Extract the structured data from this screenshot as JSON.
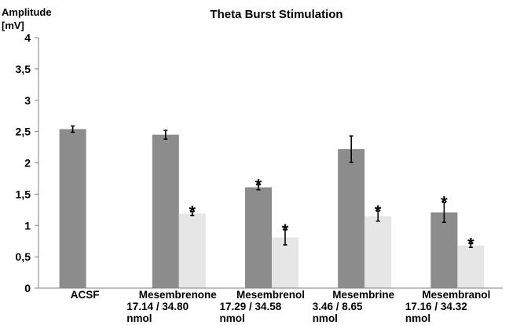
{
  "chart_data": {
    "type": "bar",
    "title": "Theta Burst Stimulation",
    "ylabel_line1": "Amplitude",
    "ylabel_line2": "[mV]",
    "ylim": [
      0,
      4
    ],
    "ytick_values": [
      0,
      0.5,
      1,
      1.5,
      2,
      2.5,
      3,
      3.5,
      4
    ],
    "ytick_labels": [
      "0",
      "0,5",
      "1",
      "1,5",
      "2",
      "2,5",
      "3",
      "3,5",
      "4"
    ],
    "grid": false,
    "legend": "none",
    "categories": [
      [
        "ACSF"
      ],
      [
        "Mesembrenone",
        "17.14 / 34.80",
        "nmol"
      ],
      [
        "Mesembrenol",
        "17.29 / 34.58",
        "nmol"
      ],
      [
        "Mesembrine",
        "3.46 / 8.65",
        "nmol"
      ],
      [
        "Mesembranol",
        "17.16 / 34.32",
        "nmol"
      ]
    ],
    "series": [
      {
        "color": "#8c8c8c",
        "values": [
          2.54,
          2.45,
          1.61,
          2.22,
          1.21
        ],
        "errors": [
          0.05,
          0.07,
          0.04,
          0.21,
          0.16
        ],
        "significance": [
          false,
          false,
          true,
          false,
          true
        ]
      },
      {
        "color": "#e6e6e6",
        "values": [
          null,
          1.19,
          0.81,
          1.15,
          0.68
        ],
        "errors": [
          null,
          0.03,
          0.12,
          0.08,
          0.03
        ],
        "significance": [
          false,
          true,
          true,
          true,
          true
        ]
      }
    ],
    "significance_marker": "*"
  }
}
